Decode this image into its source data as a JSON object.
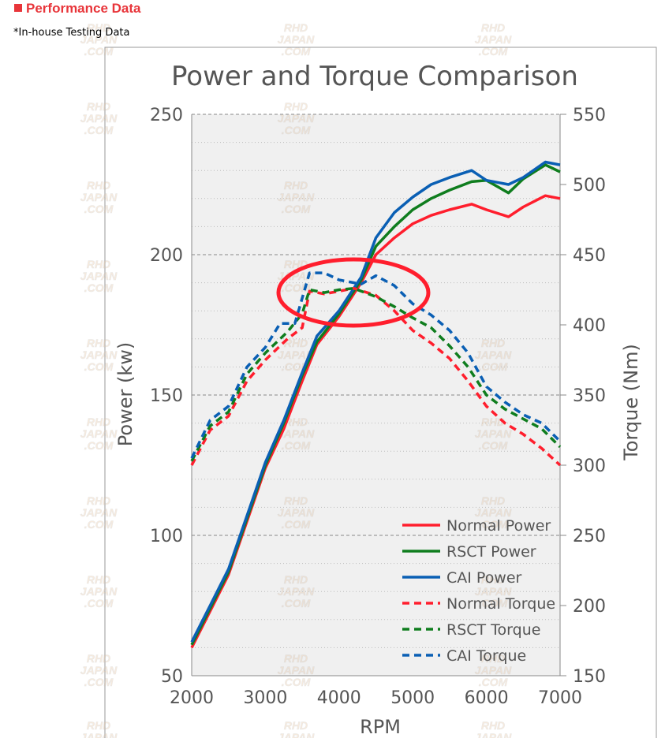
{
  "header": {
    "title": "Performance Data",
    "note": "*In-house Testing Data"
  },
  "watermark": "RHD JAPAN .COM",
  "chart_data": {
    "type": "line",
    "title": "Power and Torque Comparison",
    "xlabel": "RPM",
    "ylabel": "Power (kw)",
    "y2label": "Torque (Nm)",
    "xlim": [
      2000,
      7000
    ],
    "ylim": [
      50,
      250
    ],
    "y2lim": [
      150,
      550
    ],
    "xticks": [
      "2000",
      "3000",
      "4000",
      "5000",
      "6000",
      "7000"
    ],
    "yticks": [
      "50",
      "100",
      "150",
      "200",
      "250"
    ],
    "y2ticks": [
      "150",
      "200",
      "250",
      "300",
      "350",
      "400",
      "450",
      "500",
      "550"
    ],
    "grid": true,
    "legend": "bottom-right",
    "annotation": "red ellipse highlighting 3600-5000 RPM crossover",
    "series": [
      {
        "name": "Normal Power",
        "axis": "left",
        "color": "#ff1e2d",
        "dash": false,
        "x": [
          2000,
          2250,
          2500,
          2750,
          3000,
          3250,
          3500,
          3700,
          4000,
          4300,
          4500,
          4750,
          5000,
          5250,
          5500,
          5800,
          6000,
          6300,
          6500,
          6800,
          7000
        ],
        "y": [
          60,
          73,
          86,
          105,
          124,
          138,
          155,
          168,
          178,
          190,
          200,
          206,
          211,
          214,
          216,
          218,
          216,
          213.5,
          217,
          221,
          220
        ]
      },
      {
        "name": "RSCT Power",
        "axis": "left",
        "color": "#0f7d1e",
        "dash": false,
        "x": [
          2000,
          2250,
          2500,
          2750,
          3000,
          3250,
          3500,
          3700,
          4000,
          4300,
          4500,
          4750,
          5000,
          5250,
          5500,
          5800,
          6000,
          6300,
          6500,
          6800,
          7000
        ],
        "y": [
          61,
          74,
          87,
          106,
          125,
          140,
          157,
          169,
          179,
          191,
          203,
          210,
          216,
          220,
          223,
          226,
          226.5,
          222,
          227,
          232,
          229.5
        ]
      },
      {
        "name": "CAI Power",
        "axis": "left",
        "color": "#0a5fb4",
        "dash": false,
        "x": [
          2000,
          2250,
          2500,
          2750,
          3000,
          3250,
          3500,
          3700,
          4000,
          4300,
          4500,
          4750,
          5000,
          5250,
          5500,
          5800,
          6000,
          6300,
          6500,
          6800,
          7000
        ],
        "y": [
          62,
          75,
          88,
          107,
          126,
          141,
          158,
          171,
          180,
          192,
          206,
          215,
          220.5,
          225,
          227.5,
          230,
          226.5,
          225,
          227.5,
          233,
          232
        ]
      },
      {
        "name": "Normal Torque",
        "axis": "right",
        "color": "#ff1e2d",
        "dash": true,
        "x": [
          2000,
          2250,
          2500,
          2750,
          3000,
          3300,
          3500,
          3600,
          3800,
          4000,
          4200,
          4500,
          4750,
          5000,
          5250,
          5500,
          5750,
          6000,
          6250,
          6500,
          6750,
          7000
        ],
        "y": [
          300,
          325,
          335,
          360,
          375,
          390,
          398,
          424,
          422,
          424,
          426,
          421,
          410,
          396,
          387,
          376,
          360,
          342,
          330,
          322,
          312,
          300
        ]
      },
      {
        "name": "RSCT Torque",
        "axis": "right",
        "color": "#0f7d1e",
        "dash": true,
        "x": [
          2000,
          2250,
          2500,
          2750,
          3000,
          3300,
          3500,
          3600,
          3800,
          4000,
          4200,
          4500,
          4750,
          5000,
          5250,
          5500,
          5750,
          6000,
          6250,
          6500,
          6750,
          7000
        ],
        "y": [
          303,
          328,
          338,
          365,
          380,
          395,
          408,
          425,
          423,
          425,
          426,
          420,
          413,
          405,
          398,
          385,
          370,
          350,
          340,
          333,
          326,
          313
        ]
      },
      {
        "name": "CAI Torque",
        "axis": "right",
        "color": "#0a5fb4",
        "dash": true,
        "x": [
          2000,
          2250,
          2500,
          2750,
          3000,
          3200,
          3400,
          3600,
          3800,
          4000,
          4300,
          4500,
          4750,
          5000,
          5250,
          5500,
          5750,
          6000,
          6250,
          6500,
          6750,
          7000
        ],
        "y": [
          305,
          332,
          342,
          370,
          384,
          401,
          401,
          437,
          437,
          432,
          429,
          435,
          428,
          415,
          407,
          396,
          380,
          356,
          345,
          336,
          330,
          317
        ]
      }
    ]
  }
}
